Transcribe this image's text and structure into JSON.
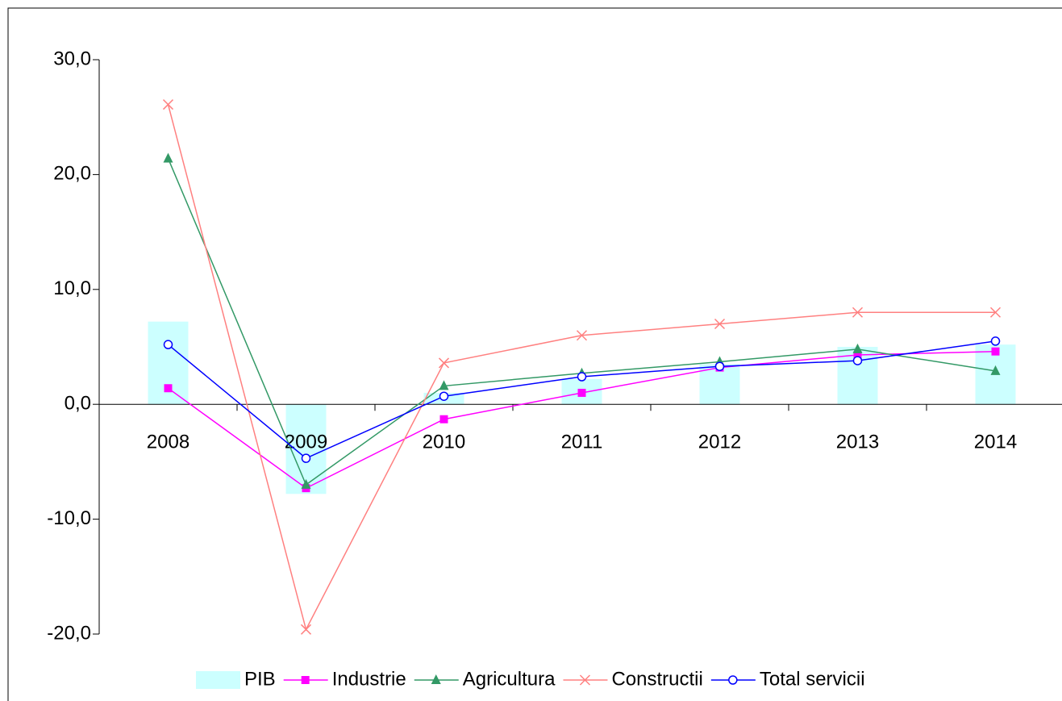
{
  "chart_data": {
    "type": "bar-line",
    "categories": [
      "2008",
      "2009",
      "2010",
      "2011",
      "2012",
      "2013",
      "2014"
    ],
    "series": [
      {
        "name": "PIB",
        "color": "#ccffff",
        "kind": "bar",
        "values": [
          7.2,
          -7.8,
          1.0,
          2.2,
          3.5,
          5.0,
          5.2
        ]
      },
      {
        "name": "Industrie",
        "color": "#ff00ff",
        "kind": "line",
        "marker": "square",
        "values": [
          1.4,
          -7.3,
          -1.3,
          1.0,
          3.2,
          4.3,
          4.6
        ]
      },
      {
        "name": "Agricultura",
        "color": "#339966",
        "kind": "line",
        "marker": "triangle",
        "values": [
          21.4,
          -7.0,
          1.6,
          2.7,
          3.7,
          4.8,
          2.9
        ]
      },
      {
        "name": "Constructii",
        "color": "#ff8080",
        "kind": "line",
        "marker": "x",
        "values": [
          26.1,
          -19.6,
          3.6,
          6.0,
          7.0,
          8.0,
          8.0
        ]
      },
      {
        "name": "Total servicii",
        "color": "#0000ff",
        "kind": "line",
        "marker": "circle",
        "values": [
          5.2,
          -4.7,
          0.7,
          2.4,
          3.3,
          3.8,
          5.5
        ]
      }
    ],
    "ylim": [
      -20,
      30
    ],
    "yticks": [
      {
        "value": -20,
        "label": "-20,0"
      },
      {
        "value": -10,
        "label": "-10,0"
      },
      {
        "value": 0,
        "label": "0,0"
      },
      {
        "value": 10,
        "label": "10,0"
      },
      {
        "value": 20,
        "label": "20,0"
      },
      {
        "value": 30,
        "label": "30,0"
      }
    ],
    "legend": "bottom"
  }
}
